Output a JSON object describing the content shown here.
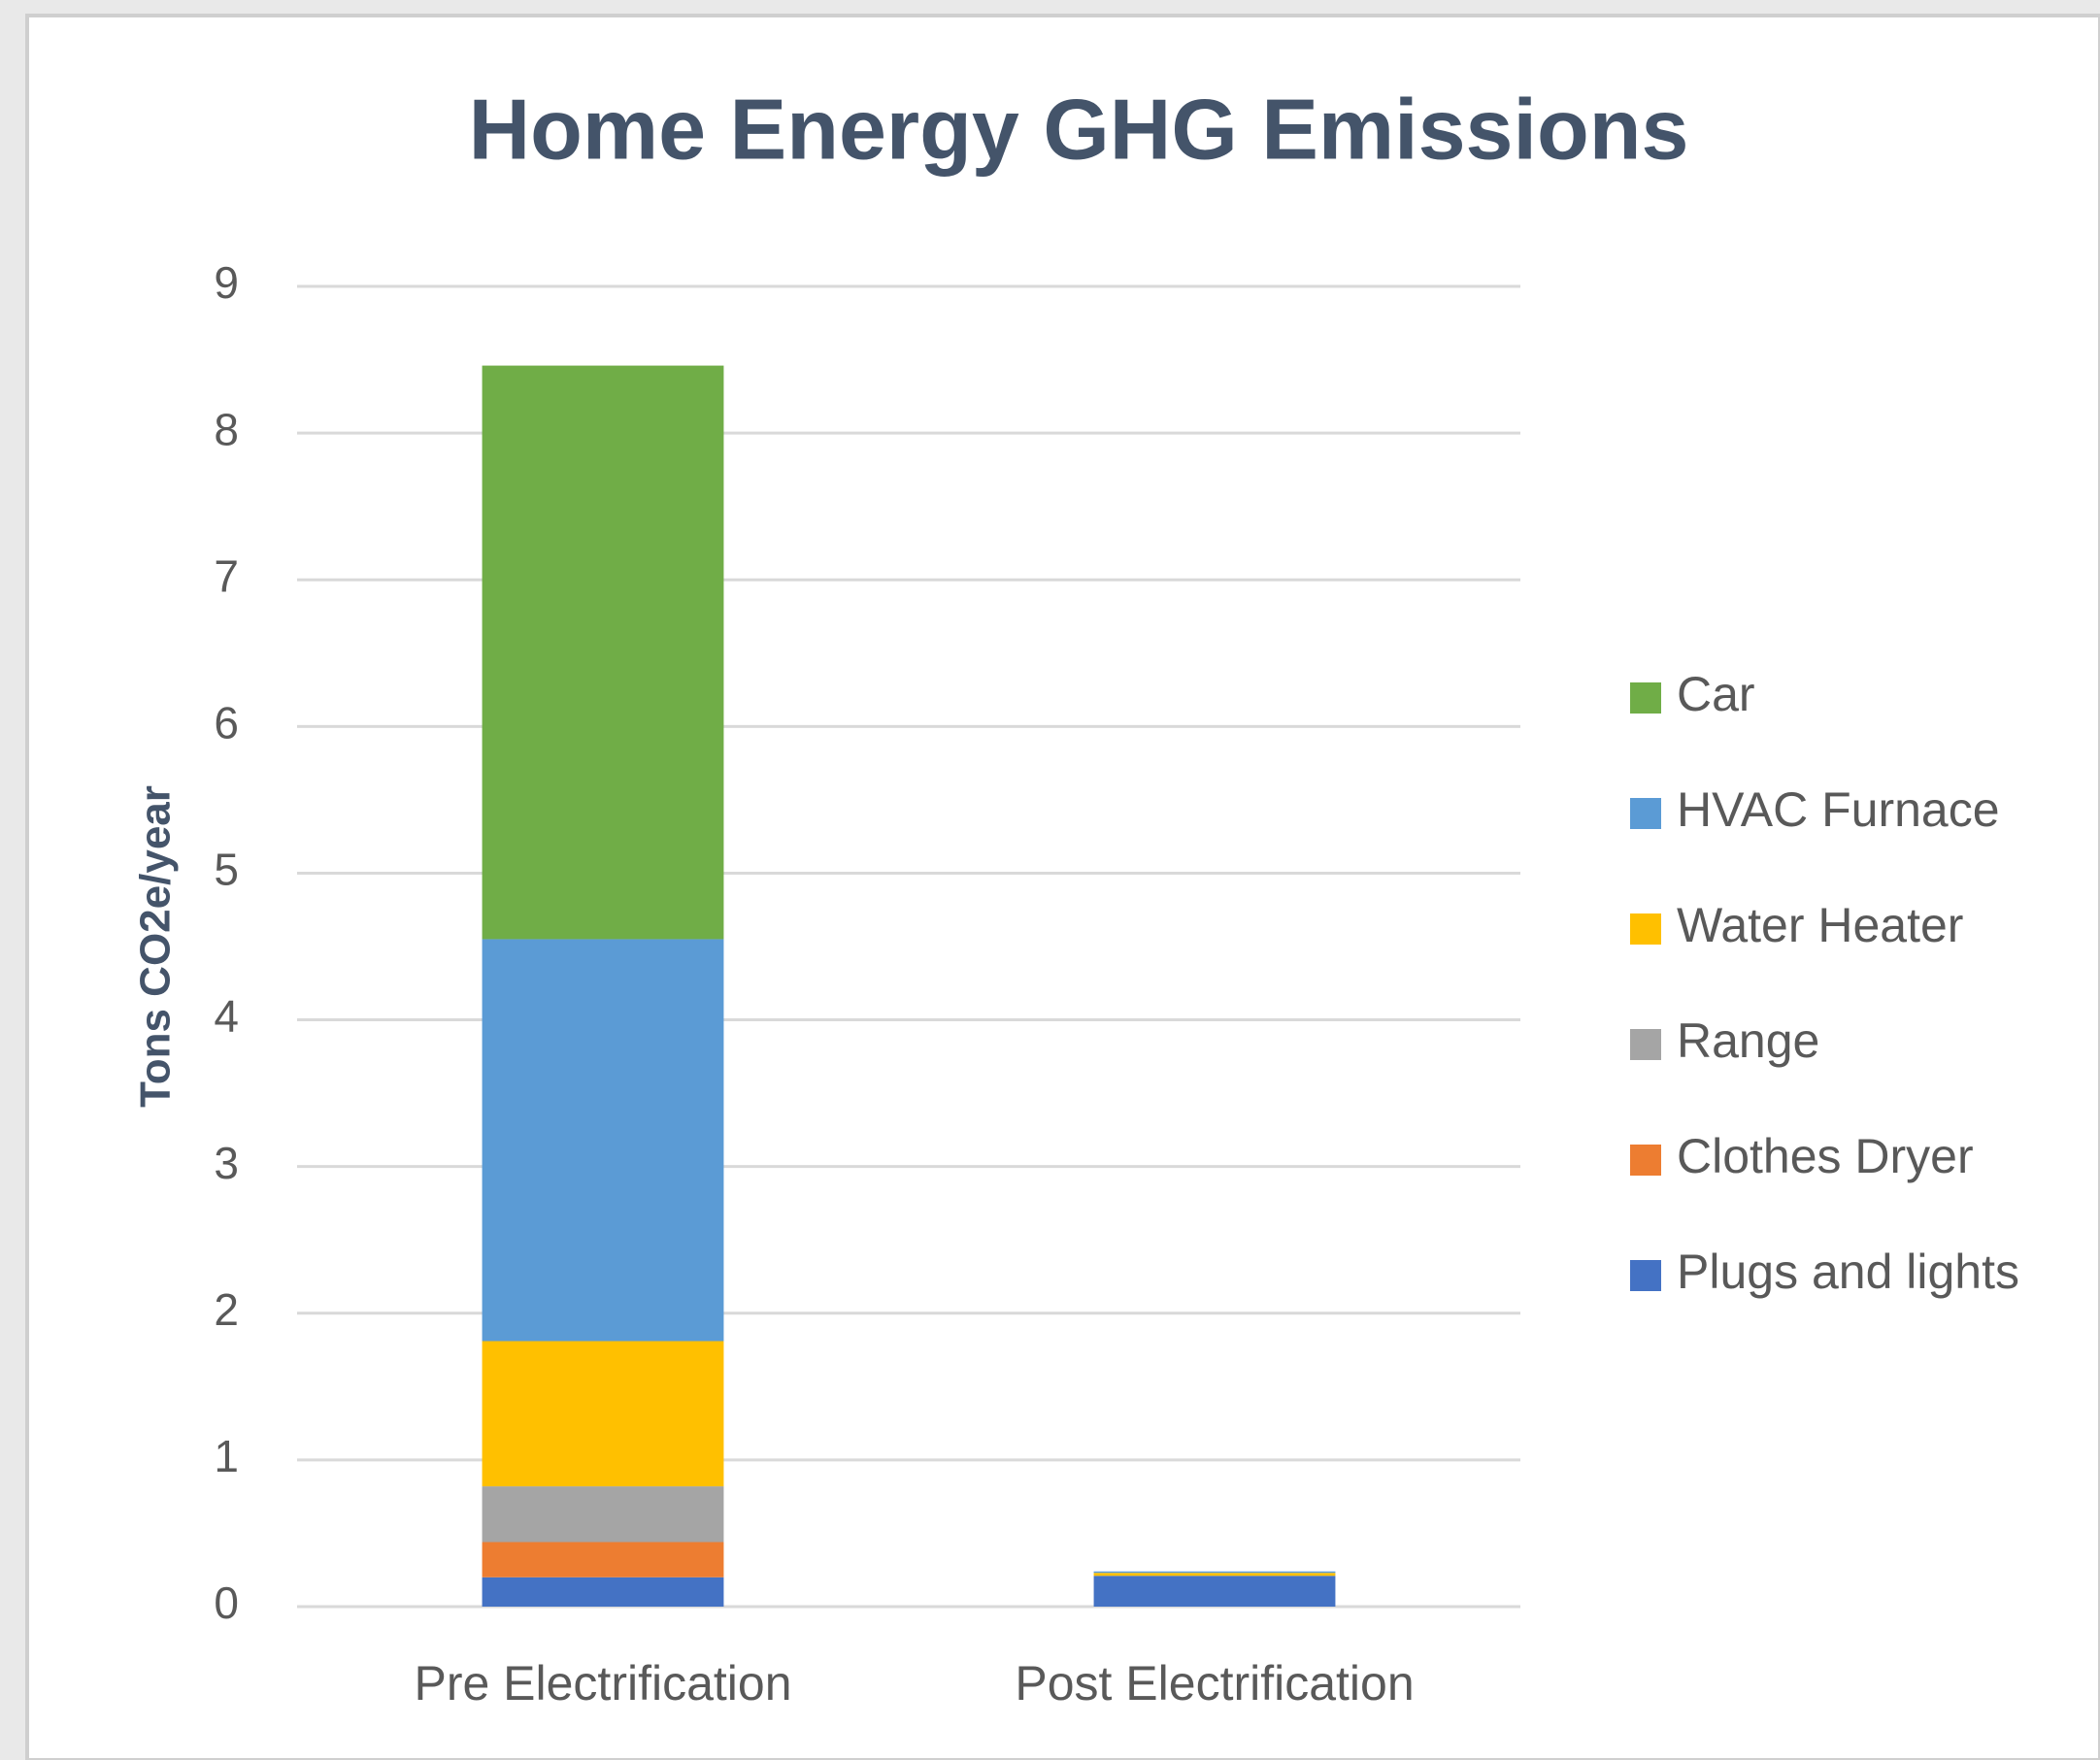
{
  "chart_data": {
    "type": "stacked_bar",
    "title": "Home Energy GHG Emissions",
    "ylabel": "Tons CO2e/year",
    "categories": [
      "Pre Electrification",
      "Post Electrification"
    ],
    "series": [
      {
        "name": "Plugs and lights",
        "color": "#4472c4",
        "values": [
          0.2,
          0.21
        ]
      },
      {
        "name": "Clothes Dryer",
        "color": "#ed7d31",
        "values": [
          0.24,
          0
        ]
      },
      {
        "name": "Range",
        "color": "#a5a5a5",
        "values": [
          0.38,
          0
        ]
      },
      {
        "name": "Water Heater",
        "color": "#ffc000",
        "values": [
          0.99,
          0.02
        ]
      },
      {
        "name": "HVAC Furnace",
        "color": "#5b9bd5",
        "values": [
          2.74,
          0.01
        ]
      },
      {
        "name": "Car",
        "color": "#70ad47",
        "values": [
          3.91,
          0
        ]
      }
    ],
    "ylim": [
      0,
      9
    ],
    "yticks": [
      0,
      1,
      2,
      3,
      4,
      5,
      6,
      7,
      8,
      9
    ],
    "grid": true,
    "legend": "right"
  }
}
